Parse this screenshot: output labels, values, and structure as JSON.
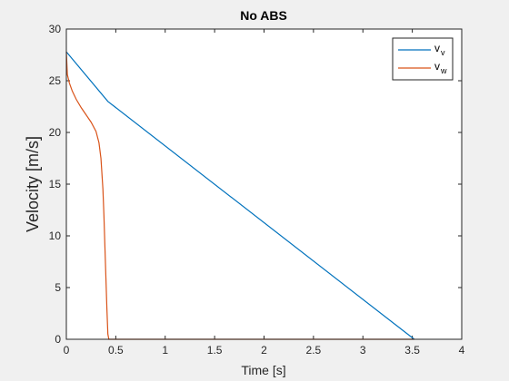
{
  "chart_data": {
    "type": "line",
    "title": "No ABS",
    "xlabel": "Time [s]",
    "ylabel": "Velocity [m/s]",
    "xlim": [
      0,
      4
    ],
    "ylim": [
      0,
      30
    ],
    "xticks": [
      "0",
      "0.5",
      "1",
      "1.5",
      "2",
      "2.5",
      "3",
      "3.5",
      "4"
    ],
    "yticks": [
      "0",
      "5",
      "10",
      "15",
      "20",
      "25",
      "30"
    ],
    "grid": false,
    "legend_position": "top-right",
    "series": [
      {
        "name": "v_v",
        "legend_base": "v",
        "legend_sub": "v",
        "color": "#0072BD",
        "x": [
          0,
          0.42,
          3.52
        ],
        "y": [
          27.8,
          23.0,
          0
        ]
      },
      {
        "name": "v_w",
        "legend_base": "v",
        "legend_sub": "w",
        "color": "#D95319",
        "x": [
          0,
          0.01,
          0.03,
          0.06,
          0.1,
          0.15,
          0.2,
          0.25,
          0.3,
          0.33,
          0.35,
          0.37,
          0.38,
          0.39,
          0.4,
          0.41,
          0.42,
          0.43,
          0.44,
          1.0,
          2.0,
          3.0,
          3.52
        ],
        "y": [
          27.8,
          25.6,
          24.8,
          24.0,
          23.2,
          22.4,
          21.7,
          21.0,
          20.1,
          19.0,
          17.5,
          14.5,
          12.0,
          9.0,
          6.0,
          3.0,
          0.5,
          0,
          0,
          0,
          0,
          0,
          0
        ]
      }
    ]
  }
}
